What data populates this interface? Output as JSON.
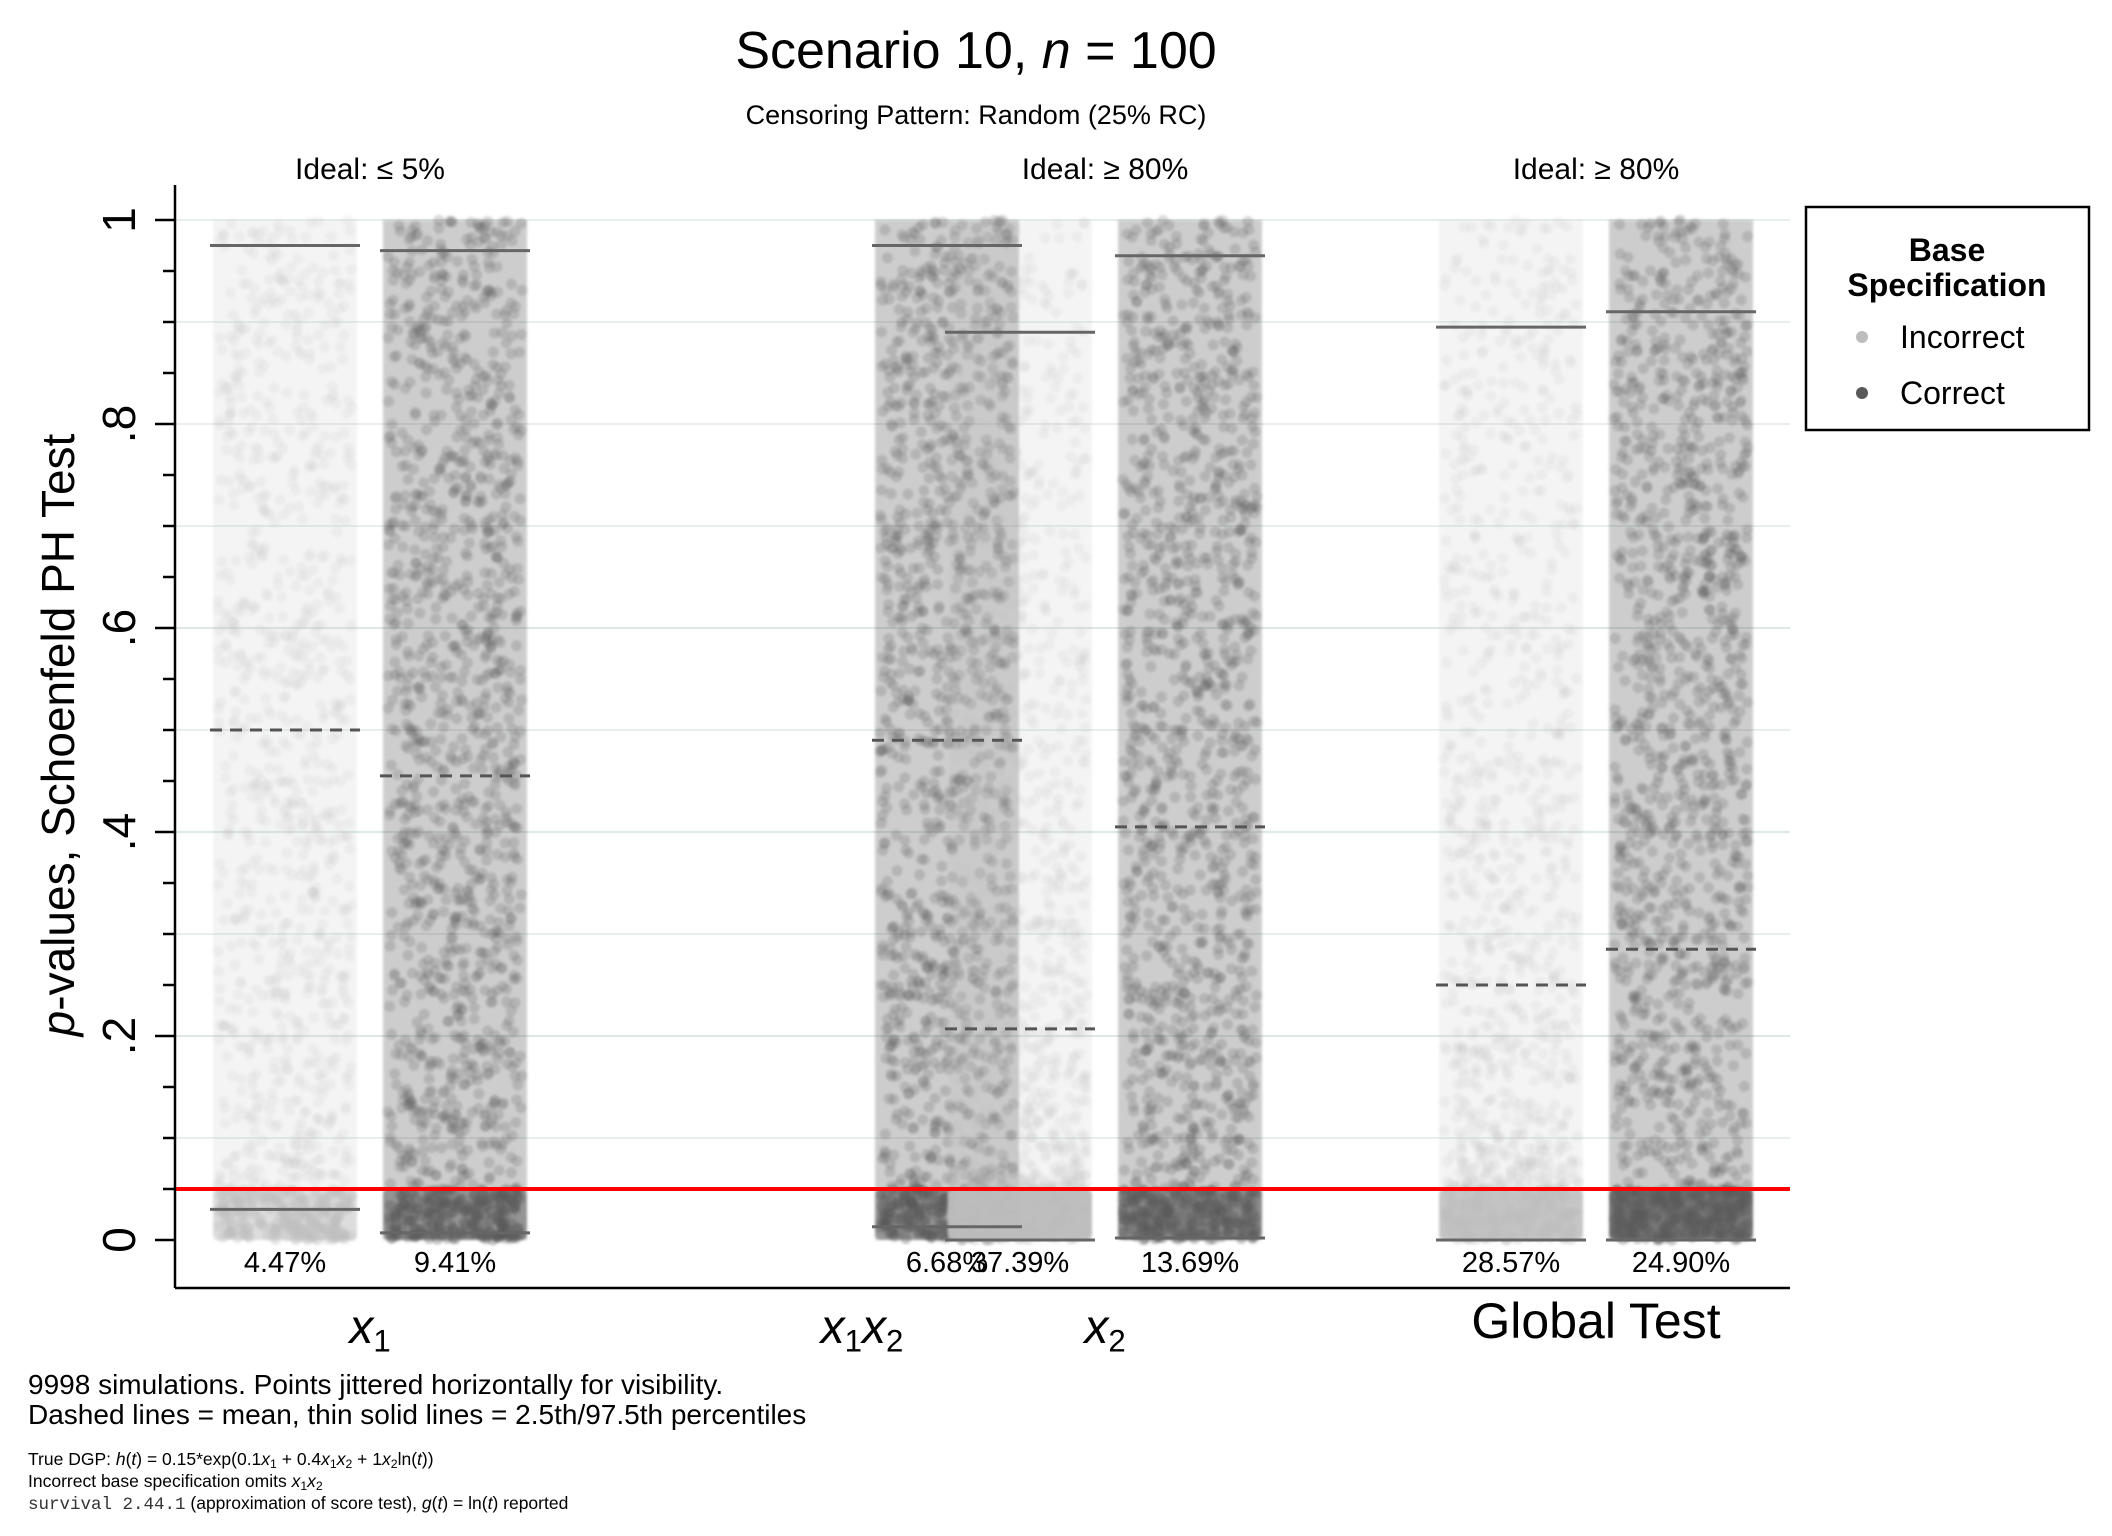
{
  "title": {
    "main": "Scenario 10, ",
    "var": "n",
    "rest": " = 100"
  },
  "subtitle": "Censoring Pattern: Random (25% RC)",
  "ylabel": {
    "italic": "p",
    "rest": "-values, Schoenfeld PH Test"
  },
  "legend": {
    "title_line1": "Base",
    "title_line2": "Specification",
    "items": [
      {
        "label": "Incorrect",
        "color": "#bdbdbd"
      },
      {
        "label": "Correct",
        "color": "#595959"
      }
    ]
  },
  "notes": {
    "line1": "9998 simulations.  Points jittered horizontally for visibility.",
    "line2": "Dashed lines = mean, thin solid lines = 2.5th/97.5th percentiles",
    "dgp_label": "True DGP: ",
    "dgp_formula": "h(t) = 0.15*exp(0.1x1 + 0.4x1x2 + 1x2ln(t))",
    "incorrect": "Incorrect base specification omits x1x2",
    "software_name": "survival 2.44.1",
    "software_rest": " (approximation of score test), g(t) = ln(t) reported"
  },
  "chart_data": {
    "type": "scatter",
    "title": "Scenario 10, n = 100",
    "subtitle": "Censoring Pattern: Random (25% RC)",
    "ylabel": "p-values, Schoenfeld PH Test",
    "ylim": [
      0,
      1
    ],
    "yticks": [
      0,
      0.2,
      0.4,
      0.6,
      0.8,
      1
    ],
    "ytick_labels": [
      "0",
      ".2",
      ".4",
      ".6",
      ".8",
      "1"
    ],
    "reference_line": {
      "y": 0.05,
      "color": "#ff0000"
    },
    "grid": true,
    "legend_position": "right",
    "groups": [
      {
        "label": "x1",
        "ideal": "Ideal: ≤ 5%"
      },
      {
        "label": "x1x2",
        "ideal": ""
      },
      {
        "label": "x2",
        "ideal": "Ideal: ≥ 80%"
      },
      {
        "label": "Global Test",
        "ideal": "Ideal: ≥ 80%"
      }
    ],
    "series": [
      {
        "group": 0,
        "spec": "Incorrect",
        "mean": 0.5,
        "p2_5": 0.03,
        "p97_5": 0.975,
        "pct_rejected": "4.47%",
        "frac_below": 0.0447
      },
      {
        "group": 0,
        "spec": "Correct",
        "mean": 0.455,
        "p2_5": 0.007,
        "p97_5": 0.97,
        "pct_rejected": "9.41%",
        "frac_below": 0.0941
      },
      {
        "group": 1,
        "spec": "Correct",
        "mean": 0.49,
        "p2_5": 0.013,
        "p97_5": 0.975,
        "pct_rejected": "6.68%",
        "frac_below": 0.0668
      },
      {
        "group": 2,
        "spec": "Incorrect",
        "mean": 0.207,
        "p2_5": 0.0,
        "p97_5": 0.89,
        "pct_rejected": "37.39%",
        "frac_below": 0.3739
      },
      {
        "group": 2,
        "spec": "Correct",
        "mean": 0.405,
        "p2_5": 0.002,
        "p97_5": 0.965,
        "pct_rejected": "13.69%",
        "frac_below": 0.1369
      },
      {
        "group": 3,
        "spec": "Incorrect",
        "mean": 0.25,
        "p2_5": 0.0,
        "p97_5": 0.895,
        "pct_rejected": "28.57%",
        "frac_below": 0.2857
      },
      {
        "group": 3,
        "spec": "Correct",
        "mean": 0.285,
        "p2_5": 0.0,
        "p97_5": 0.91,
        "pct_rejected": "24.90%",
        "frac_below": 0.249
      }
    ]
  }
}
